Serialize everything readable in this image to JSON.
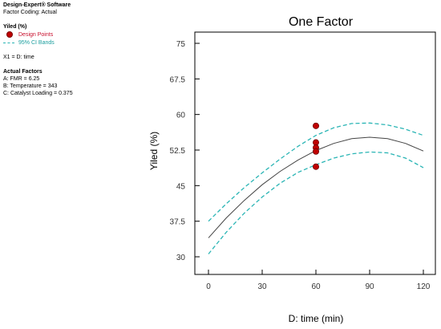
{
  "info_panel": {
    "software": "Design-Expert® Software",
    "factor_coding": "Factor Coding: Actual",
    "response_title": "Yiled (%)",
    "legend_design_points": "Design Points",
    "legend_ci_bands": "95% CI Bands",
    "x1_line": "X1 = D: time",
    "actual_factors_title": "Actual Factors",
    "factors": [
      "A: FMR = 6.25",
      "B: Temperature = 343",
      "C: Catalyst Loading = 0.375"
    ]
  },
  "chart_data": {
    "type": "line",
    "title": "One Factor",
    "xlabel": "D: time (min)",
    "ylabel": "Yiled (%)",
    "xlim": [
      0,
      120
    ],
    "ylim": [
      30,
      75
    ],
    "x_ticks": [
      0,
      30,
      60,
      90,
      120
    ],
    "x_tick_labels": [
      "0",
      "30",
      "60",
      "90",
      "120"
    ],
    "y_ticks": [
      30,
      37.5,
      45,
      52.5,
      60,
      67.5,
      75
    ],
    "y_tick_labels": [
      "30",
      "37.5",
      "45",
      "52.5",
      "60",
      "67.5",
      "75"
    ],
    "series": [
      {
        "style": "solid",
        "color": "#444444",
        "x": [
          0,
          10,
          20,
          30,
          40,
          50,
          60,
          70,
          80,
          90,
          100,
          110,
          120
        ],
        "y": [
          34.0,
          38.2,
          41.9,
          45.2,
          48.0,
          50.4,
          52.4,
          53.9,
          54.9,
          55.2,
          54.9,
          53.9,
          52.3
        ]
      },
      {
        "style": "dashed",
        "color": "#2ab5b5",
        "x": [
          0,
          10,
          20,
          30,
          40,
          50,
          60,
          70,
          80,
          90,
          100,
          110,
          120
        ],
        "y": [
          37.5,
          41.2,
          44.6,
          47.7,
          50.6,
          53.3,
          55.6,
          57.2,
          58.1,
          58.2,
          57.8,
          56.9,
          55.6
        ]
      },
      {
        "style": "dashed",
        "color": "#2ab5b5",
        "x": [
          0,
          10,
          20,
          30,
          40,
          50,
          60,
          70,
          80,
          90,
          100,
          110,
          120
        ],
        "y": [
          30.6,
          35.2,
          39.2,
          42.6,
          45.5,
          47.8,
          49.4,
          50.8,
          51.7,
          52.1,
          51.9,
          50.8,
          48.8
        ]
      }
    ],
    "points": {
      "color": "#c00000",
      "x": [
        60,
        60,
        60,
        60,
        60
      ],
      "y": [
        57.6,
        54.1,
        53.0,
        52.2,
        49.0
      ]
    },
    "grid": false,
    "legend": "left panel"
  }
}
